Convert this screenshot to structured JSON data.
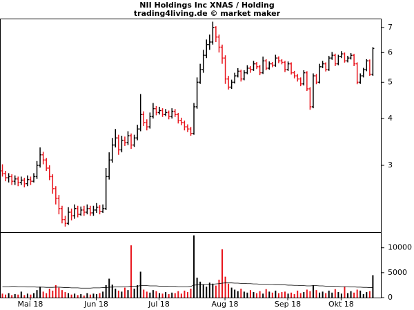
{
  "chart_data": {
    "type": "ohlc",
    "title": "NII Holdings Inc XNAS / Holding",
    "subtitle": "trading4living.de © market maker",
    "categories": [
      null,
      null,
      null,
      null,
      null,
      null,
      null,
      null,
      null,
      "Mai 18",
      null,
      null,
      null,
      null,
      null,
      null,
      null,
      null,
      null,
      null,
      null,
      null,
      null,
      null,
      null,
      null,
      null,
      null,
      null,
      null,
      "Jun 18",
      null,
      null,
      null,
      null,
      null,
      null,
      null,
      null,
      null,
      null,
      null,
      null,
      null,
      null,
      null,
      null,
      null,
      null,
      null,
      "Jul 18",
      null,
      null,
      null,
      null,
      null,
      null,
      null,
      null,
      null,
      null,
      null,
      null,
      null,
      null,
      null,
      null,
      null,
      null,
      null,
      null,
      "Aug 18",
      null,
      null,
      null,
      null,
      null,
      null,
      null,
      null,
      null,
      null,
      null,
      null,
      null,
      null,
      null,
      null,
      null,
      null,
      null,
      "Sep 18",
      null,
      null,
      null,
      null,
      null,
      null,
      null,
      null,
      null,
      null,
      null,
      null,
      null,
      null,
      null,
      null,
      "Okt 18",
      null,
      null,
      null,
      null,
      null,
      null,
      null,
      null,
      null,
      null
    ],
    "ohlc": [
      [
        2.9,
        3.02,
        2.8,
        2.85
      ],
      [
        2.85,
        2.9,
        2.72,
        2.78
      ],
      [
        2.78,
        2.86,
        2.7,
        2.8
      ],
      [
        2.8,
        2.84,
        2.66,
        2.72
      ],
      [
        2.72,
        2.82,
        2.66,
        2.76
      ],
      [
        2.76,
        2.8,
        2.64,
        2.7
      ],
      [
        2.7,
        2.8,
        2.66,
        2.74
      ],
      [
        2.74,
        2.78,
        2.62,
        2.68
      ],
      [
        2.68,
        2.82,
        2.64,
        2.75
      ],
      [
        2.75,
        2.8,
        2.66,
        2.72
      ],
      [
        2.72,
        2.86,
        2.7,
        2.8
      ],
      [
        2.8,
        3.08,
        2.76,
        3.0
      ],
      [
        3.0,
        3.35,
        2.96,
        3.2
      ],
      [
        3.2,
        3.26,
        3.02,
        3.1
      ],
      [
        3.1,
        3.14,
        2.9,
        2.95
      ],
      [
        2.95,
        3.0,
        2.74,
        2.8
      ],
      [
        2.8,
        2.84,
        2.52,
        2.6
      ],
      [
        2.6,
        2.64,
        2.36,
        2.45
      ],
      [
        2.45,
        2.5,
        2.22,
        2.3
      ],
      [
        2.3,
        2.34,
        2.1,
        2.15
      ],
      [
        2.15,
        2.2,
        2.06,
        2.1
      ],
      [
        2.1,
        2.32,
        2.08,
        2.25
      ],
      [
        2.25,
        2.3,
        2.14,
        2.2
      ],
      [
        2.2,
        2.36,
        2.16,
        2.3
      ],
      [
        2.3,
        2.34,
        2.18,
        2.22
      ],
      [
        2.22,
        2.33,
        2.2,
        2.28
      ],
      [
        2.28,
        2.34,
        2.2,
        2.25
      ],
      [
        2.25,
        2.36,
        2.22,
        2.3
      ],
      [
        2.3,
        2.34,
        2.2,
        2.24
      ],
      [
        2.24,
        2.34,
        2.2,
        2.28
      ],
      [
        2.28,
        2.38,
        2.24,
        2.32
      ],
      [
        2.32,
        2.35,
        2.22,
        2.26
      ],
      [
        2.26,
        2.36,
        2.24,
        2.3
      ],
      [
        2.3,
        2.95,
        2.28,
        2.8
      ],
      [
        2.8,
        3.25,
        2.75,
        3.1
      ],
      [
        3.1,
        3.55,
        3.05,
        3.4
      ],
      [
        3.4,
        3.75,
        3.35,
        3.55
      ],
      [
        3.55,
        3.62,
        3.2,
        3.3
      ],
      [
        3.3,
        3.6,
        3.25,
        3.5
      ],
      [
        3.5,
        3.58,
        3.38,
        3.45
      ],
      [
        3.45,
        3.7,
        3.4,
        3.6
      ],
      [
        3.6,
        3.65,
        3.32,
        3.4
      ],
      [
        3.4,
        3.62,
        3.36,
        3.55
      ],
      [
        3.55,
        3.85,
        3.5,
        3.75
      ],
      [
        3.75,
        4.65,
        3.7,
        4.1
      ],
      [
        4.1,
        4.18,
        3.82,
        3.9
      ],
      [
        3.9,
        3.98,
        3.72,
        3.8
      ],
      [
        3.8,
        4.15,
        3.76,
        4.05
      ],
      [
        4.05,
        4.4,
        4.0,
        4.25
      ],
      [
        4.25,
        4.32,
        4.08,
        4.15
      ],
      [
        4.15,
        4.3,
        4.1,
        4.2
      ],
      [
        4.2,
        4.26,
        4.04,
        4.1
      ],
      [
        4.1,
        4.24,
        4.06,
        4.15
      ],
      [
        4.15,
        4.2,
        3.98,
        4.05
      ],
      [
        4.05,
        4.26,
        4.0,
        4.18
      ],
      [
        4.18,
        4.24,
        4.04,
        4.1
      ],
      [
        4.1,
        4.14,
        3.88,
        3.95
      ],
      [
        3.95,
        4.02,
        3.84,
        3.9
      ],
      [
        3.9,
        3.95,
        3.72,
        3.8
      ],
      [
        3.8,
        3.86,
        3.68,
        3.75
      ],
      [
        3.75,
        3.8,
        3.6,
        3.65
      ],
      [
        3.65,
        4.4,
        3.62,
        4.3
      ],
      [
        4.3,
        5.15,
        4.25,
        5.0
      ],
      [
        5.0,
        5.6,
        4.95,
        5.4
      ],
      [
        5.4,
        6.1,
        5.3,
        5.9
      ],
      [
        5.9,
        6.5,
        5.8,
        6.3
      ],
      [
        6.3,
        6.7,
        6.1,
        6.4
      ],
      [
        6.4,
        7.25,
        6.3,
        7.0
      ],
      [
        7.0,
        7.05,
        6.4,
        6.6
      ],
      [
        6.6,
        6.7,
        6.0,
        6.2
      ],
      [
        6.2,
        6.3,
        5.6,
        5.8
      ],
      [
        5.8,
        5.9,
        4.95,
        5.1
      ],
      [
        5.1,
        5.2,
        4.78,
        4.85
      ],
      [
        4.85,
        5.08,
        4.8,
        5.0
      ],
      [
        5.0,
        5.3,
        4.96,
        5.2
      ],
      [
        5.2,
        5.45,
        5.15,
        5.35
      ],
      [
        5.35,
        5.4,
        5.02,
        5.1
      ],
      [
        5.1,
        5.38,
        5.06,
        5.3
      ],
      [
        5.3,
        5.55,
        5.25,
        5.45
      ],
      [
        5.45,
        5.52,
        5.3,
        5.4
      ],
      [
        5.4,
        5.7,
        5.36,
        5.6
      ],
      [
        5.6,
        5.66,
        5.42,
        5.5
      ],
      [
        5.5,
        5.56,
        5.22,
        5.3
      ],
      [
        5.3,
        5.85,
        5.26,
        5.7
      ],
      [
        5.7,
        5.76,
        5.38,
        5.45
      ],
      [
        5.45,
        5.68,
        5.4,
        5.6
      ],
      [
        5.6,
        5.66,
        5.48,
        5.55
      ],
      [
        5.55,
        5.92,
        5.5,
        5.8
      ],
      [
        5.8,
        5.86,
        5.62,
        5.7
      ],
      [
        5.7,
        5.76,
        5.58,
        5.65
      ],
      [
        5.65,
        5.7,
        5.32,
        5.4
      ],
      [
        5.4,
        5.68,
        5.36,
        5.6
      ],
      [
        5.6,
        5.65,
        5.24,
        5.3
      ],
      [
        5.3,
        5.36,
        5.12,
        5.2
      ],
      [
        5.2,
        5.26,
        5.02,
        5.1
      ],
      [
        5.1,
        5.15,
        4.88,
        4.95
      ],
      [
        4.95,
        5.38,
        4.9,
        5.3
      ],
      [
        5.3,
        5.35,
        4.74,
        4.8
      ],
      [
        4.8,
        4.85,
        4.22,
        4.3
      ],
      [
        4.3,
        5.28,
        4.26,
        5.2
      ],
      [
        5.2,
        5.26,
        4.94,
        5.0
      ],
      [
        5.0,
        5.6,
        4.96,
        5.5
      ],
      [
        5.5,
        5.7,
        5.45,
        5.6
      ],
      [
        5.6,
        5.65,
        5.34,
        5.4
      ],
      [
        5.4,
        5.88,
        5.36,
        5.8
      ],
      [
        5.8,
        6.02,
        5.74,
        5.9
      ],
      [
        5.9,
        5.96,
        5.52,
        5.6
      ],
      [
        5.6,
        5.92,
        5.55,
        5.85
      ],
      [
        5.85,
        6.05,
        5.8,
        5.95
      ],
      [
        5.95,
        6.0,
        5.64,
        5.7
      ],
      [
        5.7,
        5.88,
        5.65,
        5.8
      ],
      [
        5.8,
        5.98,
        5.75,
        5.9
      ],
      [
        5.9,
        5.95,
        5.52,
        5.6
      ],
      [
        5.6,
        5.65,
        4.94,
        5.0
      ],
      [
        5.0,
        5.28,
        4.95,
        5.2
      ],
      [
        5.2,
        5.46,
        5.15,
        5.4
      ],
      [
        5.4,
        5.76,
        5.35,
        5.7
      ],
      [
        5.7,
        5.75,
        5.2,
        5.25
      ],
      [
        5.25,
        6.2,
        5.2,
        6.15
      ]
    ],
    "up_color": "#000000",
    "down_color": "#e8141c",
    "log_scale": true,
    "ylim": [
      1.99,
      7.36
    ],
    "yticks": [
      3,
      4,
      5,
      6,
      7
    ],
    "volume": {
      "values": [
        800,
        600,
        900,
        500,
        700,
        600,
        1200,
        500,
        800,
        600,
        900,
        1500,
        2200,
        1200,
        900,
        1800,
        1400,
        2500,
        2000,
        1500,
        1100,
        900,
        600,
        800,
        500,
        700,
        400,
        900,
        600,
        800,
        700,
        900,
        1200,
        2500,
        3800,
        2600,
        1800,
        1400,
        1200,
        2000,
        1500,
        10500,
        1800,
        2500,
        5200,
        1600,
        1200,
        1000,
        1500,
        1300,
        900,
        800,
        1100,
        700,
        1000,
        900,
        1300,
        800,
        1400,
        1100,
        1800,
        12500,
        4000,
        3200,
        2600,
        2200,
        3000,
        2800,
        2400,
        3600,
        9700,
        4200,
        2800,
        2000,
        1600,
        1300,
        1800,
        1200,
        1000,
        1500,
        1100,
        900,
        1300,
        800,
        1700,
        1200,
        1000,
        1400,
        900,
        1100,
        1200,
        800,
        1000,
        700,
        1400,
        900,
        1100,
        1600,
        1300,
        2500,
        1500,
        1000,
        1200,
        900,
        1400,
        1000,
        1700,
        1100,
        800,
        2200,
        900,
        1300,
        1000,
        1600,
        1400,
        700,
        1100,
        1300,
        4500
      ],
      "average": [
        2200,
        2200,
        2200,
        2250,
        2250,
        2200,
        2200,
        2200,
        2150,
        2150,
        2150,
        2100,
        2100,
        2100,
        2050,
        2050,
        2050,
        2100,
        2100,
        2050,
        2000,
        2000,
        1950,
        1950,
        1950,
        1900,
        1900,
        1900,
        1900,
        1950,
        1950,
        1950,
        2000,
        2000,
        2100,
        2100,
        2150,
        2150,
        2150,
        2200,
        2200,
        2300,
        2300,
        2300,
        2400,
        2400,
        2400,
        2350,
        2350,
        2350,
        2300,
        2300,
        2300,
        2250,
        2250,
        2250,
        2200,
        2200,
        2200,
        2200,
        2250,
        2500,
        2550,
        2600,
        2650,
        2650,
        2700,
        2700,
        2750,
        2800,
        2900,
        2950,
        2950,
        2950,
        2900,
        2900,
        2850,
        2850,
        2800,
        2800,
        2750,
        2750,
        2700,
        2700,
        2700,
        2650,
        2650,
        2600,
        2600,
        2550,
        2550,
        2500,
        2500,
        2450,
        2450,
        2400,
        2400,
        2350,
        2350,
        2400,
        2400,
        2350,
        2350,
        2300,
        2300,
        2300,
        2250,
        2250,
        2200,
        2200,
        2200,
        2150,
        2150,
        2100,
        2100,
        2050,
        2050,
        2000,
        2000
      ],
      "average_color": "#000000",
      "ylim": [
        0,
        13000
      ],
      "yticks": [
        0,
        5000,
        10000
      ]
    }
  }
}
